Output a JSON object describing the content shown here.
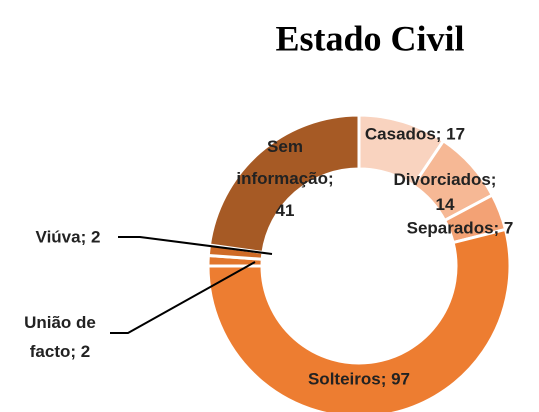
{
  "chart_data": {
    "type": "donut",
    "title": "Estado Civil",
    "categories": [
      "Casados",
      "Divorciados",
      "Separados",
      "Solteiros",
      "União de facto",
      "Viúva",
      "Sem informação"
    ],
    "values": [
      17,
      14,
      7,
      97,
      2,
      2,
      41
    ],
    "value_labels": [
      "Casados; 17",
      "Divorciados; 14",
      "Separados; 7",
      "Solteiros; 97",
      "União de facto; 2",
      "Viúva; 2",
      "Sem informação; 41"
    ],
    "colors": [
      "#f9d3bf",
      "#f6b895",
      "#f3a275",
      "#ed7d31",
      "#e2762c",
      "#cf6b27",
      "#a65a25"
    ]
  }
}
